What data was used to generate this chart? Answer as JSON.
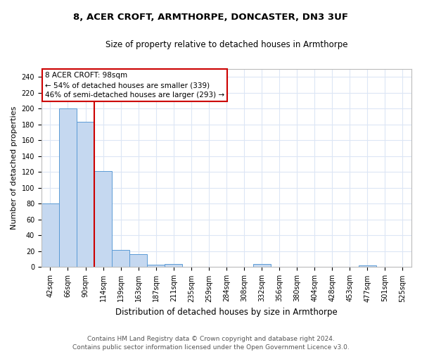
{
  "title1": "8, ACER CROFT, ARMTHORPE, DONCASTER, DN3 3UF",
  "title2": "Size of property relative to detached houses in Armthorpe",
  "xlabel": "Distribution of detached houses by size in Armthorpe",
  "ylabel": "Number of detached properties",
  "categories": [
    "42sqm",
    "66sqm",
    "90sqm",
    "114sqm",
    "139sqm",
    "163sqm",
    "187sqm",
    "211sqm",
    "235sqm",
    "259sqm",
    "284sqm",
    "308sqm",
    "332sqm",
    "356sqm",
    "380sqm",
    "404sqm",
    "428sqm",
    "453sqm",
    "477sqm",
    "501sqm",
    "525sqm"
  ],
  "bar_heights": [
    80,
    200,
    183,
    121,
    22,
    16,
    3,
    4,
    0,
    0,
    0,
    0,
    4,
    0,
    0,
    0,
    0,
    0,
    2,
    0,
    0
  ],
  "bar_color": "#c5d8f0",
  "bar_edge_color": "#5b9bd5",
  "vline_color": "#cc0000",
  "vline_x_index": 2.5,
  "annotation_line1": "8 ACER CROFT: 98sqm",
  "annotation_line2": "← 54% of detached houses are smaller (339)",
  "annotation_line3": "46% of semi-detached houses are larger (293) →",
  "annotation_box_color": "#ffffff",
  "annotation_box_edge_color": "#cc0000",
  "ylim": [
    0,
    250
  ],
  "yticks": [
    0,
    20,
    40,
    60,
    80,
    100,
    120,
    140,
    160,
    180,
    200,
    220,
    240
  ],
  "footnote1": "Contains HM Land Registry data © Crown copyright and database right 2024.",
  "footnote2": "Contains public sector information licensed under the Open Government Licence v3.0.",
  "background_color": "#ffffff",
  "grid_color": "#dce6f5",
  "title1_fontsize": 9.5,
  "title2_fontsize": 8.5,
  "ylabel_fontsize": 8,
  "xlabel_fontsize": 8.5,
  "tick_fontsize": 7,
  "annot_fontsize": 7.5,
  "footnote_fontsize": 6.5
}
